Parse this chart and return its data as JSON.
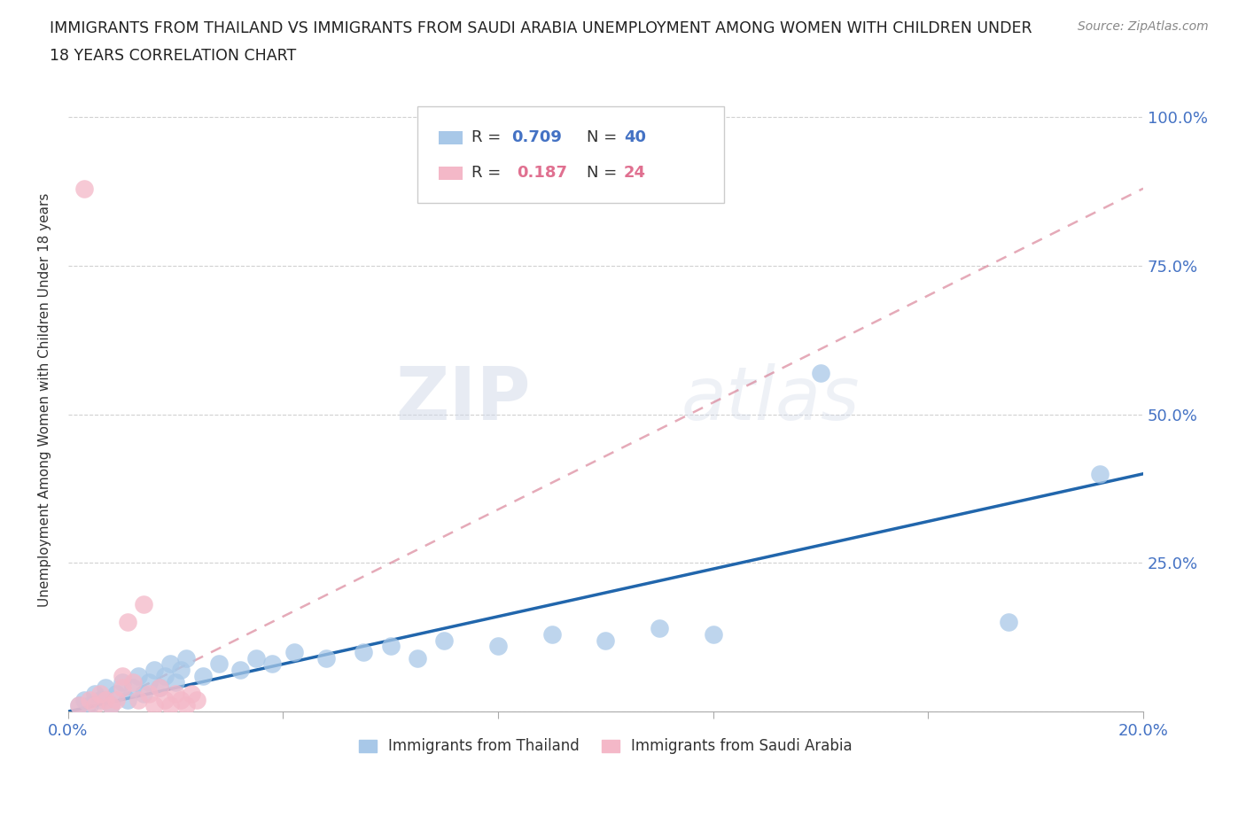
{
  "title_line1": "IMMIGRANTS FROM THAILAND VS IMMIGRANTS FROM SAUDI ARABIA UNEMPLOYMENT AMONG WOMEN WITH CHILDREN UNDER",
  "title_line2": "18 YEARS CORRELATION CHART",
  "source": "Source: ZipAtlas.com",
  "ylabel": "Unemployment Among Women with Children Under 18 years",
  "xlim": [
    0.0,
    0.2
  ],
  "ylim": [
    0.0,
    1.05
  ],
  "watermark": "ZIPatlas",
  "color_thailand": "#a8c8e8",
  "color_saudi": "#f4b8c8",
  "color_trendline_thailand": "#2166ac",
  "color_trendline_saudi": "#d4728a",
  "legend_box_color": "#e8e8f0",
  "label_color": "#4472c4",
  "r_color_thailand": "#4472c4",
  "r_color_saudi": "#e07090",
  "thailand_x": [
    0.002,
    0.003,
    0.004,
    0.005,
    0.006,
    0.007,
    0.008,
    0.009,
    0.01,
    0.011,
    0.012,
    0.013,
    0.014,
    0.015,
    0.016,
    0.017,
    0.018,
    0.019,
    0.02,
    0.021,
    0.022,
    0.025,
    0.028,
    0.032,
    0.035,
    0.038,
    0.042,
    0.048,
    0.055,
    0.06,
    0.065,
    0.07,
    0.08,
    0.09,
    0.1,
    0.11,
    0.12,
    0.14,
    0.175,
    0.192
  ],
  "thailand_y": [
    0.01,
    0.02,
    0.01,
    0.03,
    0.02,
    0.04,
    0.01,
    0.03,
    0.05,
    0.02,
    0.04,
    0.06,
    0.03,
    0.05,
    0.07,
    0.04,
    0.06,
    0.08,
    0.05,
    0.07,
    0.09,
    0.06,
    0.08,
    0.07,
    0.09,
    0.08,
    0.1,
    0.09,
    0.1,
    0.11,
    0.09,
    0.12,
    0.11,
    0.13,
    0.12,
    0.14,
    0.13,
    0.57,
    0.15,
    0.4
  ],
  "saudi_x": [
    0.002,
    0.003,
    0.004,
    0.005,
    0.006,
    0.007,
    0.008,
    0.009,
    0.01,
    0.011,
    0.012,
    0.013,
    0.014,
    0.015,
    0.016,
    0.017,
    0.018,
    0.019,
    0.02,
    0.021,
    0.022,
    0.023,
    0.024,
    0.01
  ],
  "saudi_y": [
    0.01,
    0.88,
    0.02,
    0.01,
    0.03,
    0.02,
    0.01,
    0.02,
    0.04,
    0.15,
    0.05,
    0.02,
    0.18,
    0.03,
    0.01,
    0.04,
    0.02,
    0.01,
    0.03,
    0.02,
    0.01,
    0.03,
    0.02,
    0.06
  ]
}
